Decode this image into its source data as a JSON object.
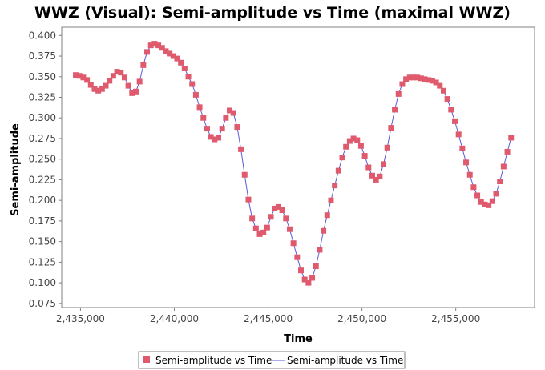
{
  "chart_data": {
    "type": "line",
    "title": "WWZ (Visual): Semi-amplitude vs Time (maximal WWZ)",
    "xlabel": "Time",
    "ylabel": "Semi-amplitude",
    "xlim": [
      2434000,
      2459200
    ],
    "ylim": [
      0.07,
      0.41
    ],
    "x_ticks": [
      2435000,
      2440000,
      2445000,
      2450000,
      2455000
    ],
    "x_tick_labels": [
      "2,435,000",
      "2,440,000",
      "2,445,000",
      "2,450,000",
      "2,455,000"
    ],
    "y_ticks": [
      0.075,
      0.1,
      0.125,
      0.15,
      0.175,
      0.2,
      0.225,
      0.25,
      0.275,
      0.3,
      0.325,
      0.35,
      0.375,
      0.4
    ],
    "y_tick_labels": [
      "0.075",
      "0.100",
      "0.125",
      "0.150",
      "0.175",
      "0.200",
      "0.225",
      "0.250",
      "0.275",
      "0.300",
      "0.325",
      "0.350",
      "0.375",
      "0.400"
    ],
    "grid": false,
    "legend_position": "bottom",
    "series": [
      {
        "name": "Semi-amplitude vs Time",
        "style": "markers",
        "color": "#e05a6e",
        "x": [
          2434750,
          2434950,
          2435150,
          2435350,
          2435550,
          2435750,
          2435950,
          2436150,
          2436350,
          2436550,
          2436750,
          2436950,
          2437150,
          2437350,
          2437550,
          2437750,
          2437950,
          2438150,
          2438350,
          2438550,
          2438750,
          2438950,
          2439150,
          2439350,
          2439550,
          2439750,
          2439950,
          2440150,
          2440350,
          2440550,
          2440750,
          2440950,
          2441150,
          2441350,
          2441550,
          2441750,
          2441950,
          2442150,
          2442350,
          2442550,
          2442750,
          2442950,
          2443150,
          2443350,
          2443550,
          2443750,
          2443950,
          2444150,
          2444350,
          2444550,
          2444750,
          2444950,
          2445150,
          2445350,
          2445550,
          2445750,
          2445950,
          2446150,
          2446350,
          2446550,
          2446750,
          2446950,
          2447150,
          2447350,
          2447550,
          2447750,
          2447950,
          2448150,
          2448350,
          2448550,
          2448750,
          2448950,
          2449150,
          2449350,
          2449550,
          2449750,
          2449950,
          2450150,
          2450350,
          2450550,
          2450750,
          2450950,
          2451150,
          2451350,
          2451550,
          2451750,
          2451950,
          2452150,
          2452350,
          2452550,
          2452750,
          2452950,
          2453150,
          2453350,
          2453550,
          2453750,
          2453950,
          2454150,
          2454350,
          2454550,
          2454750,
          2454950,
          2455150,
          2455350,
          2455550,
          2455750,
          2455950,
          2456150,
          2456350,
          2456550,
          2456750,
          2456950,
          2457150,
          2457350,
          2457550,
          2457750,
          2457950
        ],
        "y": [
          0.352,
          0.351,
          0.349,
          0.346,
          0.34,
          0.335,
          0.333,
          0.335,
          0.339,
          0.345,
          0.351,
          0.356,
          0.355,
          0.349,
          0.339,
          0.33,
          0.332,
          0.344,
          0.364,
          0.38,
          0.388,
          0.39,
          0.388,
          0.385,
          0.381,
          0.378,
          0.375,
          0.372,
          0.367,
          0.36,
          0.35,
          0.341,
          0.328,
          0.313,
          0.3,
          0.287,
          0.277,
          0.274,
          0.276,
          0.287,
          0.3,
          0.309,
          0.306,
          0.289,
          0.262,
          0.231,
          0.201,
          0.178,
          0.166,
          0.159,
          0.161,
          0.167,
          0.18,
          0.19,
          0.192,
          0.188,
          0.178,
          0.165,
          0.148,
          0.131,
          0.115,
          0.104,
          0.1,
          0.106,
          0.12,
          0.14,
          0.163,
          0.182,
          0.2,
          0.218,
          0.236,
          0.252,
          0.265,
          0.272,
          0.275,
          0.273,
          0.266,
          0.254,
          0.24,
          0.23,
          0.225,
          0.229,
          0.244,
          0.264,
          0.288,
          0.31,
          0.329,
          0.341,
          0.347,
          0.349,
          0.349,
          0.349,
          0.348,
          0.347,
          0.346,
          0.345,
          0.343,
          0.339,
          0.333,
          0.323,
          0.31,
          0.296,
          0.28,
          0.263,
          0.246,
          0.231,
          0.216,
          0.206,
          0.198,
          0.195,
          0.194,
          0.199,
          0.208,
          0.223,
          0.241,
          0.259,
          0.276
        ]
      },
      {
        "name": "Semi-amplitude vs Time",
        "style": "line",
        "color": "#5a5ad8",
        "x": "same as markers series",
        "y": "same as markers series"
      }
    ]
  },
  "colors": {
    "marker": "#e05a6e",
    "line": "#5a5ad8",
    "plot_border": "#808080"
  }
}
